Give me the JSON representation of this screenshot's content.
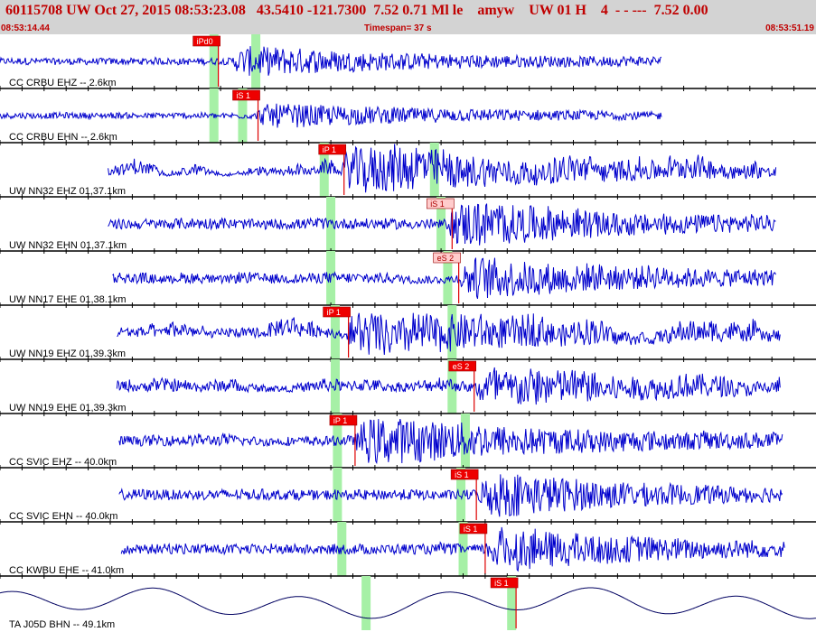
{
  "header": {
    "event_line": "60115708 UW Oct 27, 2015 08:53:23.08   43.5410 -121.7300  7.52 0.71 Ml le    amyw    UW 01 H    4  - - ---  7.52 0.00",
    "start_time": "08:53:14.44",
    "timespan": "Timespan=  37 s",
    "end_time": "08:53:51.19"
  },
  "colors": {
    "trace": "#0000cc",
    "pick": "#dd0000",
    "pick_label_bg": "#ee0000",
    "pick_label_bg_light": "#ffcccc",
    "predicted_window": "#a6f0a6",
    "separator": "#000000",
    "station_label": "#000000"
  },
  "chart_data": {
    "type": "line",
    "title": "",
    "xlabel": "",
    "ylabel": "",
    "x_axis": {
      "start": "08:53:14.44",
      "end": "08:53:51.19",
      "span_s": 37
    },
    "grid": false,
    "legend": "none",
    "traces": [
      {
        "station": "CC CRBU EHZ -- 2.6km",
        "trace_start_s": 0.0,
        "trace_end_s": 30.0,
        "onset_s": 10.5,
        "amp": 0.25,
        "peak": 1.0,
        "noise": 0.05,
        "decay": 8,
        "windows_s": [
          9.7,
          11.6
        ],
        "picks": [
          {
            "label": "iPd0",
            "t_s": 9.9,
            "light": false
          }
        ]
      },
      {
        "station": "CC CRBU EHN -- 2.6km",
        "trace_start_s": 0.0,
        "trace_end_s": 30.0,
        "onset_s": 11.6,
        "amp": 0.22,
        "peak": 0.8,
        "noise": 0.05,
        "decay": 8,
        "windows_s": [
          9.7,
          11.0
        ],
        "picks": [
          {
            "label": "iS 1",
            "t_s": 11.7,
            "light": false
          }
        ]
      },
      {
        "station": "UW NN32 EHZ 01,37.1km",
        "trace_start_s": 4.9,
        "trace_end_s": 35.2,
        "onset_s": 15.5,
        "amp": 0.38,
        "peak": 1.6,
        "noise": 0.45,
        "decay": 10,
        "windows_s": [
          14.7,
          19.7
        ],
        "picks": [
          {
            "label": "iP 1",
            "t_s": 15.6,
            "light": false
          }
        ]
      },
      {
        "station": "UW NN32 EHN 01,37.1km",
        "trace_start_s": 4.9,
        "trace_end_s": 35.2,
        "onset_s": 20.3,
        "amp": 0.38,
        "peak": 1.6,
        "noise": 0.1,
        "decay": 7,
        "windows_s": [
          15.0,
          20.0
        ],
        "picks": [
          {
            "label": "iS 1",
            "t_s": 20.5,
            "light": true
          }
        ]
      },
      {
        "station": "UW NN17 EHE 01,38.1km",
        "trace_start_s": 5.1,
        "trace_end_s": 35.2,
        "onset_s": 20.8,
        "amp": 0.38,
        "peak": 1.4,
        "noise": 0.16,
        "decay": 7,
        "windows_s": [
          15.0,
          20.3
        ],
        "picks": [
          {
            "label": "eS 2",
            "t_s": 20.8,
            "light": true
          }
        ]
      },
      {
        "station": "UW NN19 EHZ 01,39.3km",
        "trace_start_s": 5.3,
        "trace_end_s": 35.4,
        "onset_s": 15.7,
        "amp": 0.38,
        "peak": 1.6,
        "noise": 0.55,
        "decay": 10,
        "windows_s": [
          15.2,
          20.5
        ],
        "picks": [
          {
            "label": "iP 1",
            "t_s": 15.8,
            "light": false
          }
        ]
      },
      {
        "station": "UW NN19 EHE 01,39.3km",
        "trace_start_s": 5.3,
        "trace_end_s": 35.4,
        "onset_s": 21.5,
        "amp": 0.38,
        "peak": 1.5,
        "noise": 0.3,
        "decay": 8,
        "windows_s": [
          15.2,
          20.5
        ],
        "picks": [
          {
            "label": "eS 2",
            "t_s": 21.5,
            "light": false
          }
        ]
      },
      {
        "station": "CC SVIC EHZ -- 40.0km",
        "trace_start_s": 5.4,
        "trace_end_s": 35.5,
        "onset_s": 16.1,
        "amp": 0.38,
        "peak": 1.6,
        "noise": 0.12,
        "decay": 9,
        "windows_s": [
          15.3,
          21.1
        ],
        "picks": [
          {
            "label": "iP 1",
            "t_s": 16.1,
            "light": false
          }
        ]
      },
      {
        "station": "CC SVIC EHN -- 40.0km",
        "trace_start_s": 5.4,
        "trace_end_s": 35.5,
        "onset_s": 21.7,
        "amp": 0.38,
        "peak": 1.6,
        "noise": 0.06,
        "decay": 6,
        "windows_s": [
          15.3,
          20.9
        ],
        "picks": [
          {
            "label": "iS 1",
            "t_s": 21.6,
            "light": false
          }
        ]
      },
      {
        "station": "CC KWBU EHE -- 41.0km",
        "trace_start_s": 5.5,
        "trace_end_s": 35.6,
        "onset_s": 22.0,
        "amp": 0.38,
        "peak": 1.5,
        "noise": 0.12,
        "decay": 7,
        "windows_s": [
          15.5,
          21.0
        ],
        "picks": [
          {
            "label": "iS 1",
            "t_s": 22.0,
            "light": false
          }
        ]
      },
      {
        "station": "TA J05D BHN -- 49.1km",
        "trace_start_s": 0.0,
        "trace_end_s": 37.0,
        "onset_s": null,
        "amp": 0.4,
        "peak": 0.0,
        "noise": 0.0,
        "decay": 1,
        "windows_s": [
          16.6,
          23.2
        ],
        "picks": [
          {
            "label": "iS 1",
            "t_s": 23.4,
            "light": false
          }
        ]
      }
    ]
  }
}
